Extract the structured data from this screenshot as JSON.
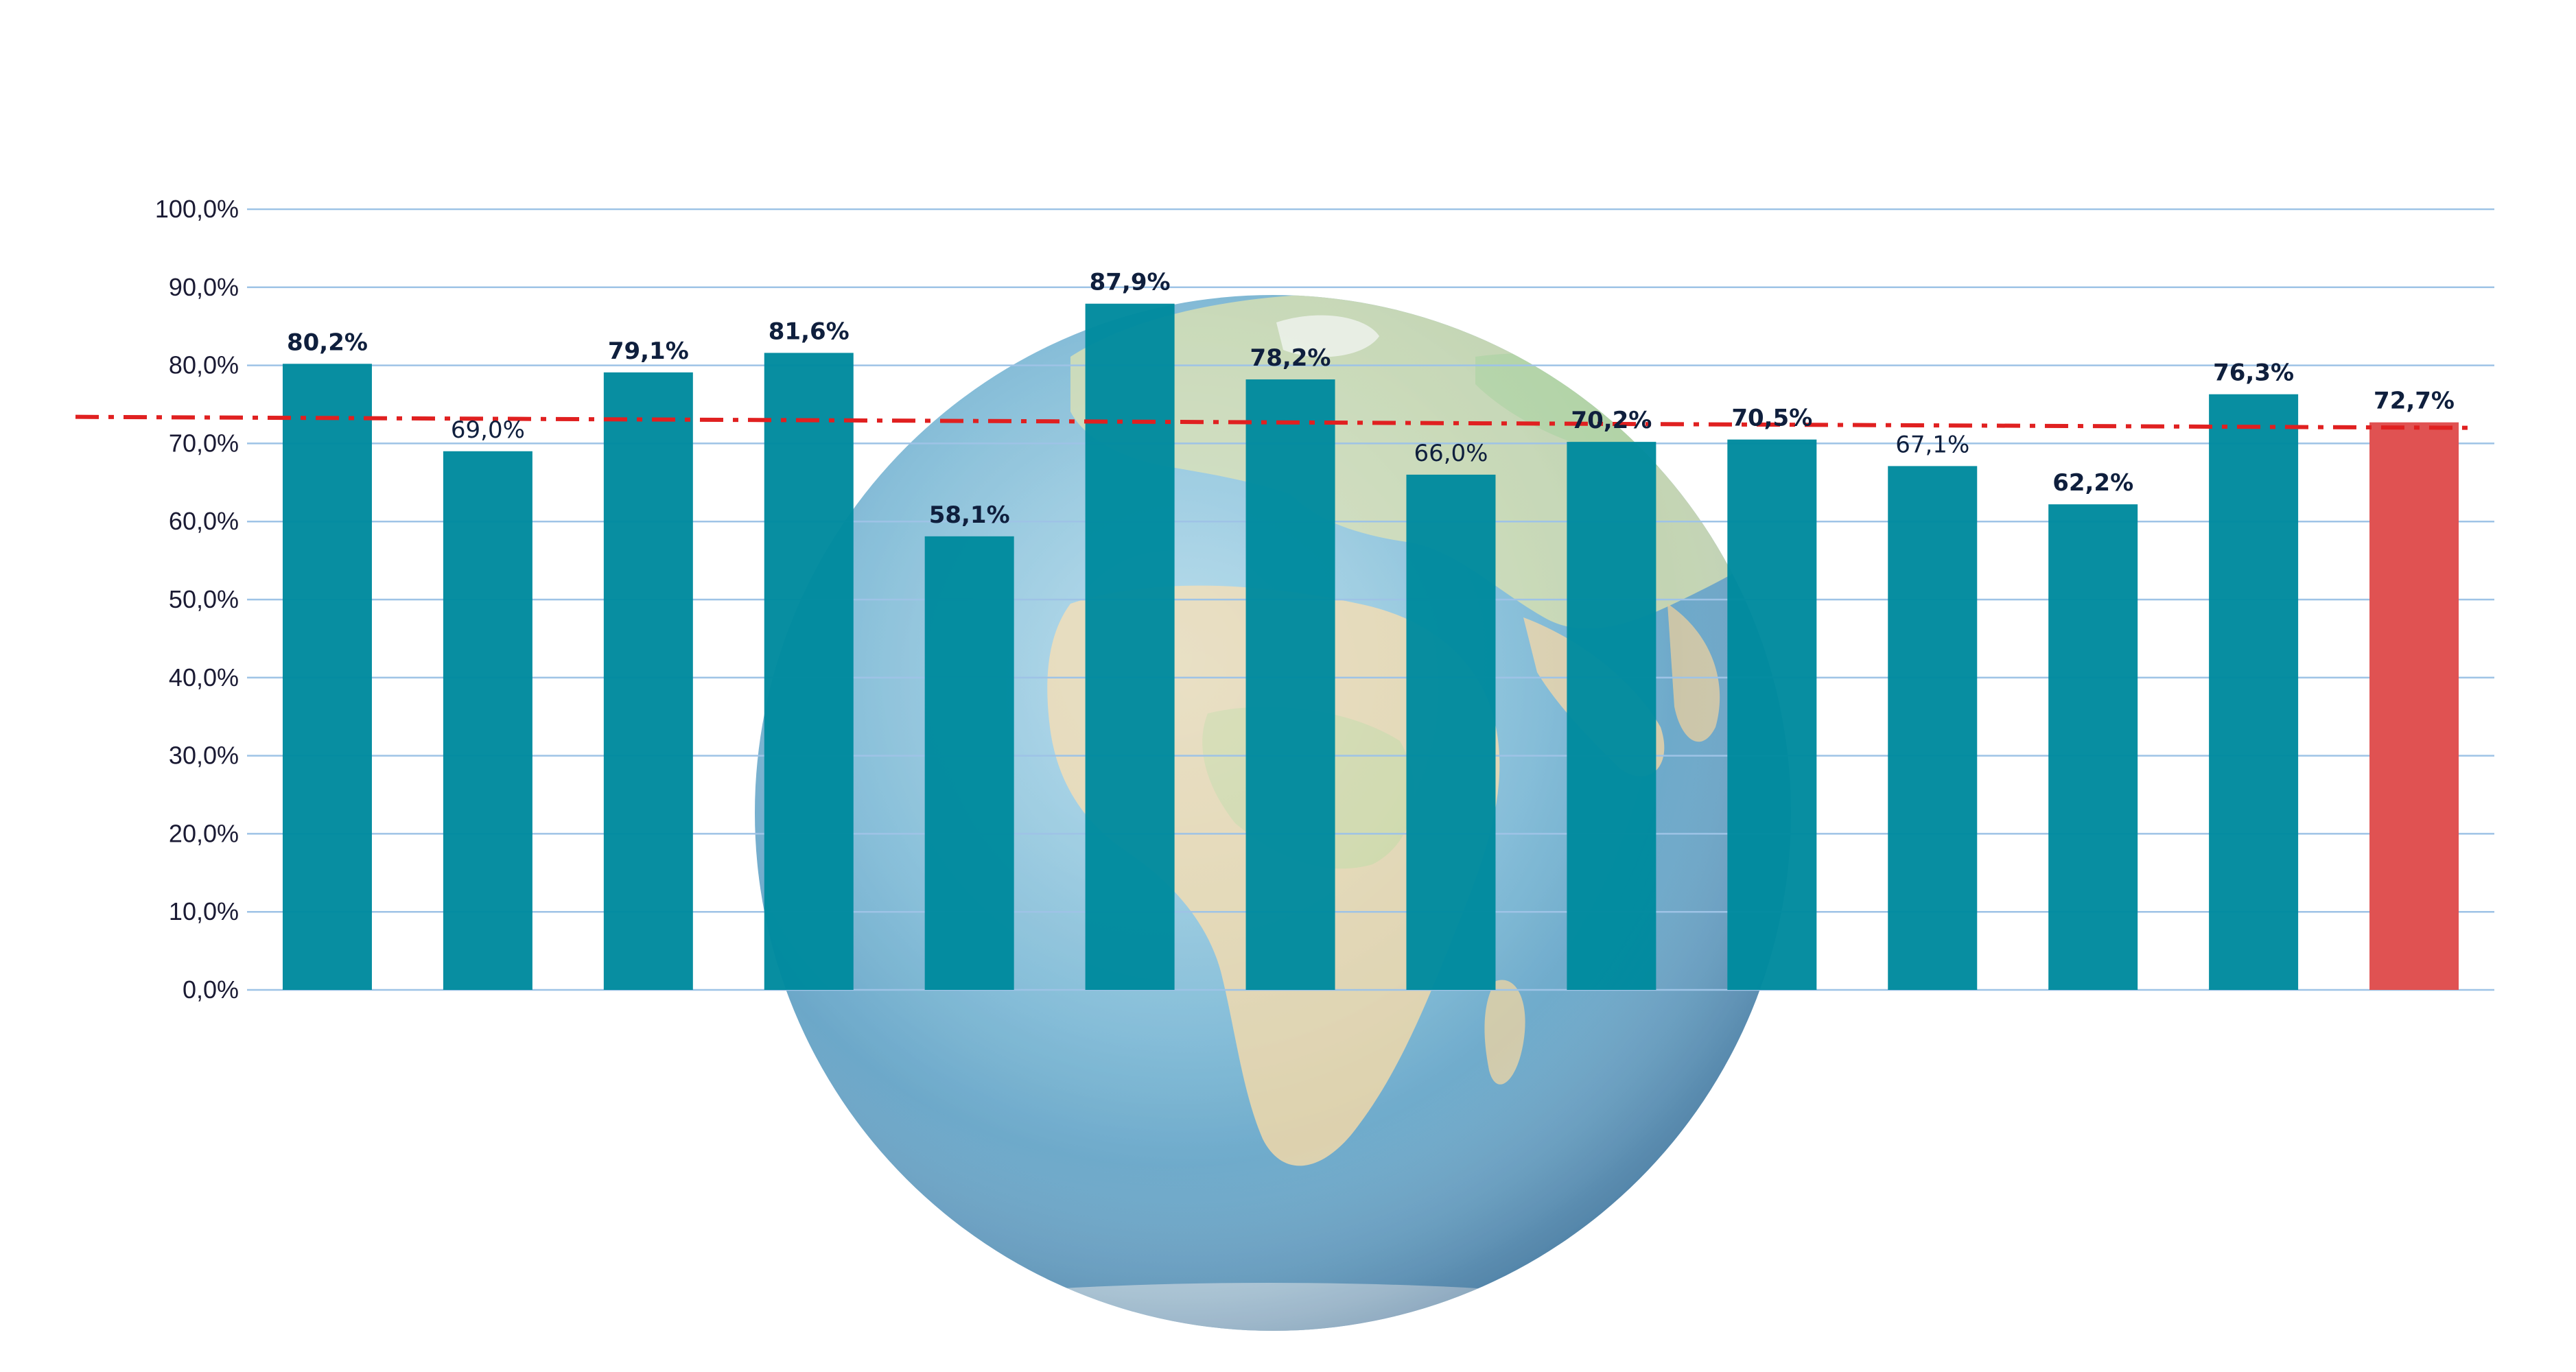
{
  "chart_data": {
    "type": "bar",
    "title": "",
    "xlabel": "",
    "ylabel": "",
    "ylim": [
      0,
      100
    ],
    "yticks": [
      0,
      10,
      20,
      30,
      40,
      50,
      60,
      70,
      80,
      90,
      100
    ],
    "ytick_labels": [
      "0,0%",
      "10,0%",
      "20,0%",
      "30,0%",
      "40,0%",
      "50,0%",
      "60,0%",
      "70,0%",
      "80,0%",
      "90,0%",
      "100,0%"
    ],
    "grid": true,
    "legend": "none",
    "values": [
      80.2,
      69.0,
      79.1,
      81.6,
      58.1,
      87.9,
      78.2,
      66.0,
      70.2,
      70.5,
      67.1,
      62.2,
      76.3,
      72.7
    ],
    "value_labels": [
      "80,2%",
      "69,0%",
      "79,1%",
      "81,6%",
      "58,1%",
      "87,9%",
      "78,2%",
      "66,0%",
      "70,2%",
      "70,5%",
      "67,1%",
      "62,2%",
      "76,3%",
      "72,7%"
    ],
    "label_bold": [
      true,
      false,
      true,
      true,
      true,
      true,
      true,
      false,
      true,
      true,
      false,
      true,
      true,
      true
    ],
    "highlight_index": 13,
    "reference_line": {
      "value": 72.7,
      "style": "dash-dot"
    },
    "background_image": "earth-globe",
    "colors": {
      "bar": "#008a9e",
      "highlight_bar": "#e05252",
      "reference_line": "#e02020",
      "grid": "#9ec3e6",
      "axis_text": "#1a1a33"
    }
  }
}
